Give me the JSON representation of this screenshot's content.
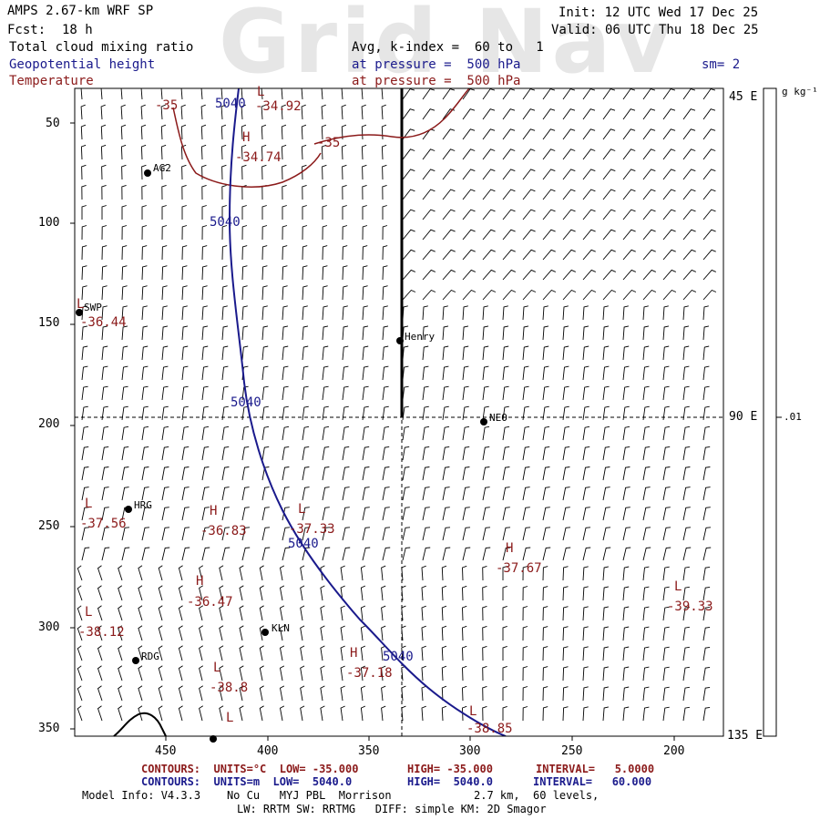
{
  "header": {
    "watermark": "Grid Nav",
    "title": "AMPS 2.67-km WRF SP",
    "fcst_label": "Fcst:",
    "fcst_value": "18 h",
    "init": "Init: 12 UTC Wed 17 Dec 25",
    "valid": "Valid: 06 UTC Thu 18 Dec 25",
    "field_cloud": "Total cloud mixing ratio",
    "field_geo": "Geopotential height",
    "field_temp": "Temperature",
    "avg_k": "Avg, k-index =  60 to   1",
    "pressure_geo": "at pressure =  500 hPa",
    "pressure_temp": "at pressure =  500 hPa",
    "smoothing": "sm= 2"
  },
  "colorbar": {
    "units": "g kg⁻¹",
    "tick": ".01"
  },
  "axes": {
    "y_ticks": [
      "50",
      "100",
      "150",
      "200",
      "250",
      "300",
      "350"
    ],
    "x_ticks": [
      "450",
      "400",
      "350",
      "300",
      "250",
      "200"
    ],
    "right_labels": [
      "45 E",
      "90 E",
      "135 E"
    ]
  },
  "stations": [
    {
      "name": "AG2"
    },
    {
      "name": "SWP"
    },
    {
      "name": "Henry"
    },
    {
      "name": "NEO"
    },
    {
      "name": "HRG"
    },
    {
      "name": "KLN"
    },
    {
      "name": "RDG"
    }
  ],
  "geo_contour_labels": [
    "5040",
    "5040",
    "5040",
    "5040",
    "5040"
  ],
  "temp_contour_labels": [
    "-35",
    "-35"
  ],
  "extrema": [
    {
      "kind": "L",
      "value": "-34.92"
    },
    {
      "kind": "H",
      "value": "-34.74"
    },
    {
      "kind": "L",
      "value": "-36.44"
    },
    {
      "kind": "L",
      "value": "-37.56"
    },
    {
      "kind": "H",
      "value": "-36.83"
    },
    {
      "kind": "L",
      "value": "-37.33"
    },
    {
      "kind": "H",
      "value": "-37.67"
    },
    {
      "kind": "L",
      "value": "-39.33"
    },
    {
      "kind": "H",
      "value": "-36.47"
    },
    {
      "kind": "L",
      "value": "-38.12"
    },
    {
      "kind": "H",
      "value": "-37.18"
    },
    {
      "kind": "L",
      "value": "-38.8"
    },
    {
      "kind": "L",
      "value": "-38.85"
    },
    {
      "kind": "L",
      "value": ""
    }
  ],
  "footer": {
    "temp_contours": "CONTOURS:  UNITS=°C  LOW= -35.000",
    "temp_high": "HIGH= -35.000",
    "temp_interval": "INTERVAL=   5.0000",
    "geo_contours": "CONTOURS:  UNITS=m  LOW=  5040.0",
    "geo_high": "HIGH=  5040.0",
    "geo_interval": "INTERVAL=   60.000",
    "model_info": "Model Info: V4.3.3    No Cu   MYJ PBL  Morrison",
    "resolution": "2.7 km,  60 levels,",
    "physics": "LW: RRTM SW: RRTMG   DIFF: simple KM: 2D Smagor"
  },
  "colors": {
    "geopotential": "#1a1a8c",
    "temperature": "#8b1a1a",
    "barbs": "#000000",
    "colorbar_frame": "#000000"
  }
}
